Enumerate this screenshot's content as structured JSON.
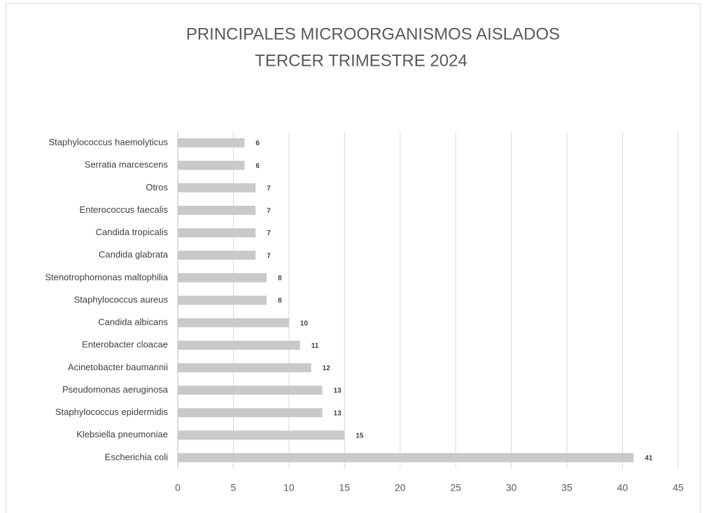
{
  "chart_data": {
    "type": "bar",
    "orientation": "horizontal",
    "title": [
      "PRINCIPALES MICROORGANISMOS  AISLADOS",
      "TERCER TRIMESTRE 2024"
    ],
    "categories": [
      "Staphylococcus haemolyticus",
      "Serratia marcescens",
      "Otros",
      "Enterococcus faecalis",
      "Candida tropicalis",
      "Candida glabrata",
      "Stenotrophomonas maltophilia",
      "Staphylococcus aureus",
      "Candida albicans",
      "Enterobacter cloacae",
      "Acinetobacter baumannii",
      "Pseudomonas aeruginosa",
      "Staphylococcus epidermidis",
      "Klebsiella pneumoniae",
      "Escherichia coli"
    ],
    "values": [
      6,
      6,
      7,
      7,
      7,
      7,
      8,
      8,
      10,
      11,
      12,
      13,
      13,
      15,
      41
    ],
    "color": "#c9c9c9",
    "xlim": [
      0,
      45
    ],
    "xticks": [
      0,
      5,
      10,
      15,
      20,
      25,
      30,
      35,
      40,
      45
    ],
    "grid": true
  }
}
